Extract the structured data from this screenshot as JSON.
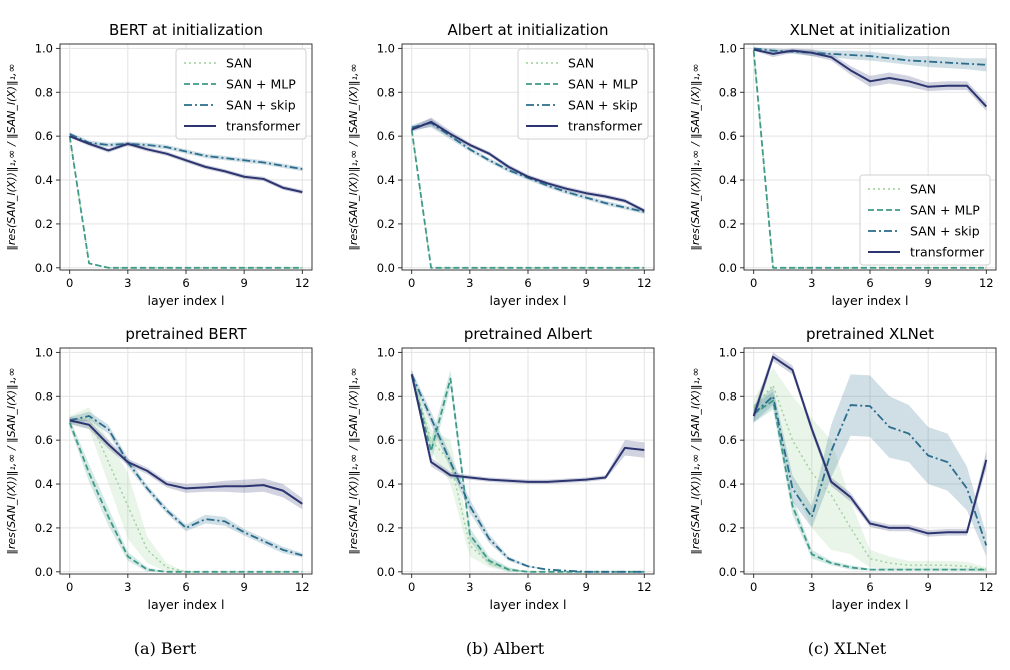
{
  "colors": {
    "SAN": "#9ad19a",
    "SAN + MLP": "#3e9a8a",
    "SAN + skip": "#2a6d8c",
    "transformer": "#2c3570"
  },
  "chart_data": [
    {
      "type": "line",
      "title": "BERT at initialization",
      "xlabel": "layer index l",
      "ylabel": "‖res(SAN_l(X))‖₁,∞ / ‖SAN_l(X)‖₁,∞",
      "xlim": [
        -0.5,
        12.5
      ],
      "ylim": [
        -0.01,
        1.02
      ],
      "xticks": [
        0,
        3,
        6,
        9,
        12
      ],
      "yticks": [
        0.0,
        0.2,
        0.4,
        0.6,
        0.8,
        1.0
      ],
      "grid": true,
      "legend": "top-right",
      "x": [
        0,
        1,
        2,
        3,
        4,
        5,
        6,
        7,
        8,
        9,
        10,
        11,
        12
      ],
      "series": [
        {
          "name": "SAN",
          "values": [
            0.6,
            0.02,
            0,
            0,
            0,
            0,
            0,
            0,
            0,
            0,
            0,
            0,
            0
          ]
        },
        {
          "name": "SAN + MLP",
          "values": [
            0.6,
            0.02,
            0,
            0,
            0,
            0,
            0,
            0,
            0,
            0,
            0,
            0,
            0
          ]
        },
        {
          "name": "SAN + skip",
          "values": [
            0.61,
            0.57,
            0.56,
            0.565,
            0.56,
            0.55,
            0.53,
            0.51,
            0.5,
            0.49,
            0.48,
            0.465,
            0.45
          ],
          "band": [
            0.008,
            0.01,
            0.01,
            0.01,
            0.01,
            0.01,
            0.01,
            0.01,
            0.01,
            0.01,
            0.01,
            0.01,
            0.01
          ]
        },
        {
          "name": "transformer",
          "values": [
            0.6,
            0.565,
            0.535,
            0.565,
            0.54,
            0.52,
            0.49,
            0.46,
            0.44,
            0.415,
            0.405,
            0.365,
            0.345
          ],
          "band": [
            0.008,
            0.01,
            0.01,
            0.01,
            0.01,
            0.01,
            0.01,
            0.01,
            0.01,
            0.01,
            0.01,
            0.01,
            0.01
          ]
        }
      ]
    },
    {
      "type": "line",
      "title": "Albert at initialization",
      "xlabel": "layer index l",
      "ylabel": "‖res(SAN_l(X))‖₁,∞ / ‖SAN_l(X)‖₁,∞",
      "xlim": [
        -0.5,
        12.5
      ],
      "ylim": [
        -0.01,
        1.02
      ],
      "xticks": [
        0,
        3,
        6,
        9,
        12
      ],
      "yticks": [
        0.0,
        0.2,
        0.4,
        0.6,
        0.8,
        1.0
      ],
      "grid": true,
      "legend": "top-right",
      "x": [
        0,
        1,
        2,
        3,
        4,
        5,
        6,
        7,
        8,
        9,
        10,
        11,
        12
      ],
      "series": [
        {
          "name": "SAN",
          "values": [
            0.63,
            0,
            0,
            0,
            0,
            0,
            0,
            0,
            0,
            0,
            0,
            0,
            0
          ]
        },
        {
          "name": "SAN + MLP",
          "values": [
            0.63,
            0,
            0,
            0,
            0,
            0,
            0,
            0,
            0,
            0,
            0,
            0,
            0
          ]
        },
        {
          "name": "SAN + skip",
          "values": [
            0.64,
            0.66,
            0.6,
            0.54,
            0.49,
            0.445,
            0.41,
            0.375,
            0.345,
            0.32,
            0.295,
            0.275,
            0.255
          ],
          "band": [
            0.01,
            0.02,
            0.015,
            0.01,
            0.01,
            0.01,
            0.01,
            0.01,
            0.01,
            0.01,
            0.01,
            0.01,
            0.01
          ]
        },
        {
          "name": "transformer",
          "values": [
            0.63,
            0.665,
            0.61,
            0.56,
            0.52,
            0.46,
            0.415,
            0.385,
            0.36,
            0.34,
            0.325,
            0.305,
            0.26
          ],
          "band": [
            0.01,
            0.02,
            0.015,
            0.01,
            0.01,
            0.01,
            0.01,
            0.01,
            0.01,
            0.01,
            0.01,
            0.01,
            0.01
          ]
        }
      ]
    },
    {
      "type": "line",
      "title": "XLNet at initialization",
      "xlabel": "layer index l",
      "ylabel": "‖res(SAN_l(X))‖₁,∞ / ‖SAN_l(X)‖₁,∞",
      "xlim": [
        -0.5,
        12.5
      ],
      "ylim": [
        -0.01,
        1.02
      ],
      "xticks": [
        0,
        3,
        6,
        9,
        12
      ],
      "yticks": [
        0.0,
        0.2,
        0.4,
        0.6,
        0.8,
        1.0
      ],
      "grid": true,
      "legend": "bottom-right",
      "x": [
        0,
        1,
        2,
        3,
        4,
        5,
        6,
        7,
        8,
        9,
        10,
        11,
        12
      ],
      "series": [
        {
          "name": "SAN",
          "values": [
            0.99,
            0,
            0,
            0,
            0,
            0,
            0,
            0,
            0,
            0,
            0,
            0,
            0
          ]
        },
        {
          "name": "SAN + MLP",
          "values": [
            0.99,
            0,
            0,
            0,
            0,
            0,
            0,
            0,
            0,
            0,
            0,
            0,
            0
          ]
        },
        {
          "name": "SAN + skip",
          "values": [
            1.0,
            0.99,
            0.985,
            0.98,
            0.975,
            0.97,
            0.965,
            0.955,
            0.945,
            0.94,
            0.935,
            0.93,
            0.925
          ],
          "band": [
            0.005,
            0.01,
            0.01,
            0.015,
            0.015,
            0.02,
            0.02,
            0.02,
            0.02,
            0.025,
            0.025,
            0.025,
            0.03
          ]
        },
        {
          "name": "transformer",
          "values": [
            0.995,
            0.975,
            0.99,
            0.98,
            0.96,
            0.9,
            0.85,
            0.865,
            0.85,
            0.825,
            0.83,
            0.83,
            0.735
          ],
          "band": [
            0.005,
            0.015,
            0.01,
            0.015,
            0.015,
            0.02,
            0.025,
            0.025,
            0.025,
            0.02,
            0.02,
            0.02,
            0.02
          ]
        }
      ]
    },
    {
      "type": "line",
      "title": "pretrained BERT",
      "xlabel": "layer index l",
      "ylabel": "‖res(SAN_l(X))‖₁,∞ / ‖SAN_l(X)‖₁,∞",
      "xlim": [
        -0.5,
        12.5
      ],
      "ylim": [
        -0.01,
        1.02
      ],
      "xticks": [
        0,
        3,
        6,
        9,
        12
      ],
      "yticks": [
        0.0,
        0.2,
        0.4,
        0.6,
        0.8,
        1.0
      ],
      "grid": true,
      "legend": "none",
      "x": [
        0,
        1,
        2,
        3,
        4,
        5,
        6,
        7,
        8,
        9,
        10,
        11,
        12
      ],
      "series": [
        {
          "name": "SAN",
          "values": [
            0.69,
            0.7,
            0.5,
            0.3,
            0.1,
            0.02,
            0,
            0,
            0,
            0,
            0,
            0,
            0
          ],
          "band": [
            0.02,
            0.05,
            0.1,
            0.15,
            0.06,
            0.02,
            0,
            0,
            0,
            0,
            0,
            0,
            0
          ]
        },
        {
          "name": "SAN + MLP",
          "values": [
            0.68,
            0.45,
            0.25,
            0.07,
            0.01,
            0,
            0,
            0,
            0,
            0,
            0,
            0,
            0
          ],
          "band": [
            0.02,
            0.04,
            0.04,
            0.02,
            0.01,
            0,
            0,
            0,
            0,
            0,
            0,
            0,
            0
          ]
        },
        {
          "name": "SAN + skip",
          "values": [
            0.69,
            0.71,
            0.65,
            0.5,
            0.38,
            0.28,
            0.2,
            0.24,
            0.23,
            0.18,
            0.14,
            0.1,
            0.075
          ],
          "band": [
            0.015,
            0.02,
            0.02,
            0.02,
            0.015,
            0.015,
            0.015,
            0.02,
            0.02,
            0.015,
            0.015,
            0.015,
            0.01
          ]
        },
        {
          "name": "transformer",
          "values": [
            0.69,
            0.67,
            0.58,
            0.5,
            0.46,
            0.4,
            0.38,
            0.385,
            0.39,
            0.39,
            0.395,
            0.37,
            0.31
          ],
          "band": [
            0.015,
            0.02,
            0.02,
            0.015,
            0.015,
            0.015,
            0.02,
            0.02,
            0.025,
            0.03,
            0.03,
            0.03,
            0.025
          ]
        }
      ]
    },
    {
      "type": "line",
      "title": "pretrained Albert",
      "xlabel": "layer index l",
      "ylabel": "‖res(SAN_l(X))‖₁,∞ / ‖SAN_l(X)‖₁,∞",
      "xlim": [
        -0.5,
        12.5
      ],
      "ylim": [
        -0.01,
        1.02
      ],
      "xticks": [
        0,
        3,
        6,
        9,
        12
      ],
      "yticks": [
        0.0,
        0.2,
        0.4,
        0.6,
        0.8,
        1.0
      ],
      "grid": true,
      "legend": "none",
      "x": [
        0,
        1,
        2,
        3,
        4,
        5,
        6,
        7,
        8,
        9,
        10,
        11,
        12
      ],
      "series": [
        {
          "name": "SAN",
          "values": [
            0.9,
            0.6,
            0.5,
            0.12,
            0.04,
            0.01,
            0,
            0,
            0,
            0,
            0,
            0,
            0
          ],
          "band": [
            0.02,
            0.05,
            0.1,
            0.05,
            0.02,
            0.01,
            0,
            0,
            0,
            0,
            0,
            0,
            0
          ]
        },
        {
          "name": "SAN + MLP",
          "values": [
            0.9,
            0.55,
            0.88,
            0.17,
            0.05,
            0.01,
            0,
            0,
            0,
            0,
            0,
            0,
            0
          ],
          "band": [
            0.02,
            0.05,
            0.04,
            0.03,
            0.02,
            0.01,
            0,
            0,
            0,
            0,
            0,
            0,
            0
          ]
        },
        {
          "name": "SAN + skip",
          "values": [
            0.9,
            0.7,
            0.5,
            0.3,
            0.15,
            0.06,
            0.025,
            0.01,
            0.005,
            0,
            0,
            0,
            0
          ],
          "band": [
            0.02,
            0.03,
            0.03,
            0.03,
            0.02,
            0.01,
            0.005,
            0,
            0,
            0,
            0,
            0,
            0
          ]
        },
        {
          "name": "transformer",
          "values": [
            0.9,
            0.5,
            0.44,
            0.43,
            0.42,
            0.415,
            0.41,
            0.41,
            0.415,
            0.42,
            0.43,
            0.565,
            0.555
          ],
          "band": [
            0.02,
            0.02,
            0.015,
            0.01,
            0.01,
            0.01,
            0.01,
            0.01,
            0.01,
            0.01,
            0.01,
            0.035,
            0.035
          ]
        }
      ]
    },
    {
      "type": "line",
      "title": "pretrained XLNet",
      "xlabel": "layer index l",
      "ylabel": "‖res(SAN_l(X))‖₁,∞ / ‖SAN_l(X)‖₁,∞",
      "xlim": [
        -0.5,
        12.5
      ],
      "ylim": [
        -0.01,
        1.02
      ],
      "xticks": [
        0,
        3,
        6,
        9,
        12
      ],
      "yticks": [
        0.0,
        0.2,
        0.4,
        0.6,
        0.8,
        1.0
      ],
      "grid": true,
      "legend": "none",
      "x": [
        0,
        1,
        2,
        3,
        4,
        5,
        6,
        7,
        8,
        9,
        10,
        11,
        12
      ],
      "series": [
        {
          "name": "SAN",
          "values": [
            0.75,
            0.85,
            0.6,
            0.45,
            0.35,
            0.2,
            0.06,
            0.04,
            0.03,
            0.03,
            0.03,
            0.025,
            0.01
          ],
          "band": [
            0.04,
            0.08,
            0.2,
            0.25,
            0.25,
            0.12,
            0.04,
            0.03,
            0.02,
            0.02,
            0.02,
            0.02,
            0.01
          ]
        },
        {
          "name": "SAN + MLP",
          "values": [
            0.72,
            0.78,
            0.3,
            0.08,
            0.04,
            0.02,
            0.01,
            0.01,
            0.01,
            0.01,
            0.01,
            0.01,
            0.01
          ],
          "band": [
            0.04,
            0.04,
            0.04,
            0.02,
            0.01,
            0.01,
            0.005,
            0.005,
            0.005,
            0.005,
            0.005,
            0.005,
            0.005
          ]
        },
        {
          "name": "SAN + skip",
          "values": [
            0.72,
            0.8,
            0.38,
            0.25,
            0.55,
            0.76,
            0.755,
            0.66,
            0.63,
            0.53,
            0.5,
            0.38,
            0.12
          ],
          "band": [
            0.04,
            0.04,
            0.06,
            0.05,
            0.12,
            0.14,
            0.14,
            0.14,
            0.13,
            0.13,
            0.13,
            0.1,
            0.05
          ]
        },
        {
          "name": "transformer",
          "values": [
            0.71,
            0.98,
            0.92,
            0.65,
            0.41,
            0.34,
            0.22,
            0.2,
            0.2,
            0.175,
            0.18,
            0.18,
            0.51
          ],
          "band": [
            0.03,
            0.02,
            0.02,
            0.02,
            0.02,
            0.02,
            0.015,
            0.015,
            0.015,
            0.015,
            0.015,
            0.015,
            0.04
          ]
        }
      ]
    }
  ],
  "legend_labels": [
    "SAN",
    "SAN + MLP",
    "SAN + skip",
    "transformer"
  ],
  "captions": [
    "(a) Bert",
    "(b) Albert",
    "(c) XLNet"
  ]
}
